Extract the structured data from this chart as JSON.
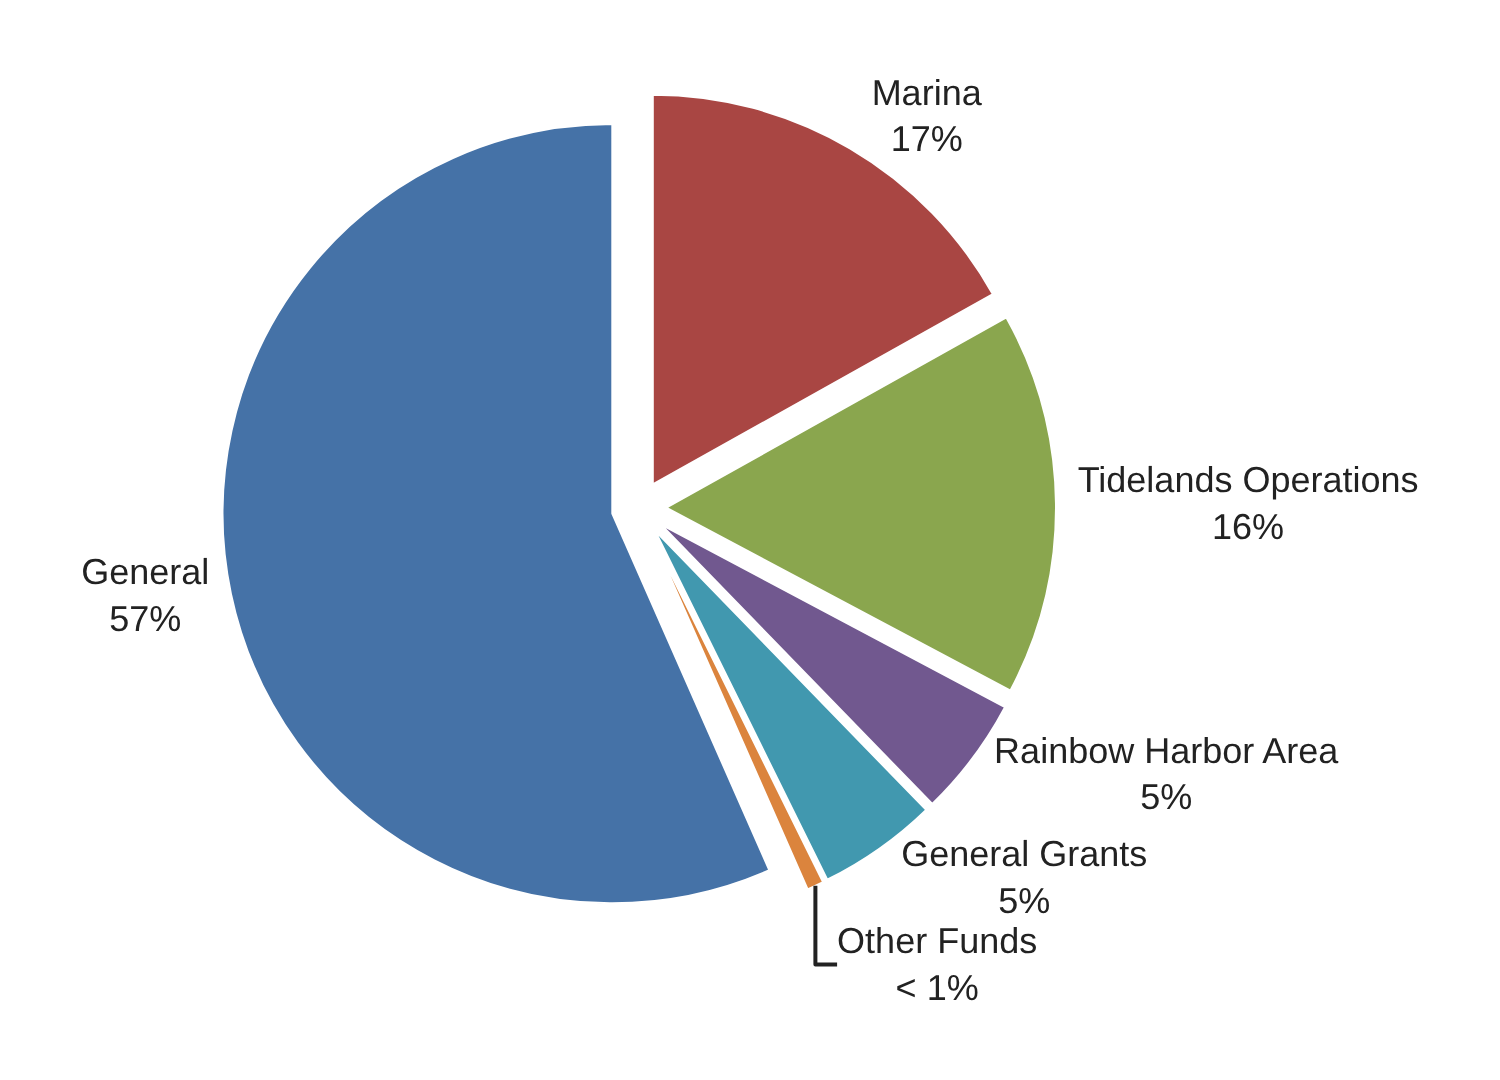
{
  "chart_data": {
    "type": "pie",
    "categories": [
      "Marina",
      "Tidelands Operations",
      "Rainbow Harbor Area",
      "General Grants",
      "Other Funds",
      "General"
    ],
    "values": [
      17,
      16,
      5,
      5,
      0.7,
      57
    ],
    "value_labels": [
      "17%",
      "16%",
      "5%",
      "5%",
      "< 1%",
      "57%"
    ],
    "colors": [
      "#a94643",
      "#8aa64e",
      "#71588f",
      "#4198af",
      "#db843d",
      "#4572a7"
    ],
    "legend": false
  }
}
